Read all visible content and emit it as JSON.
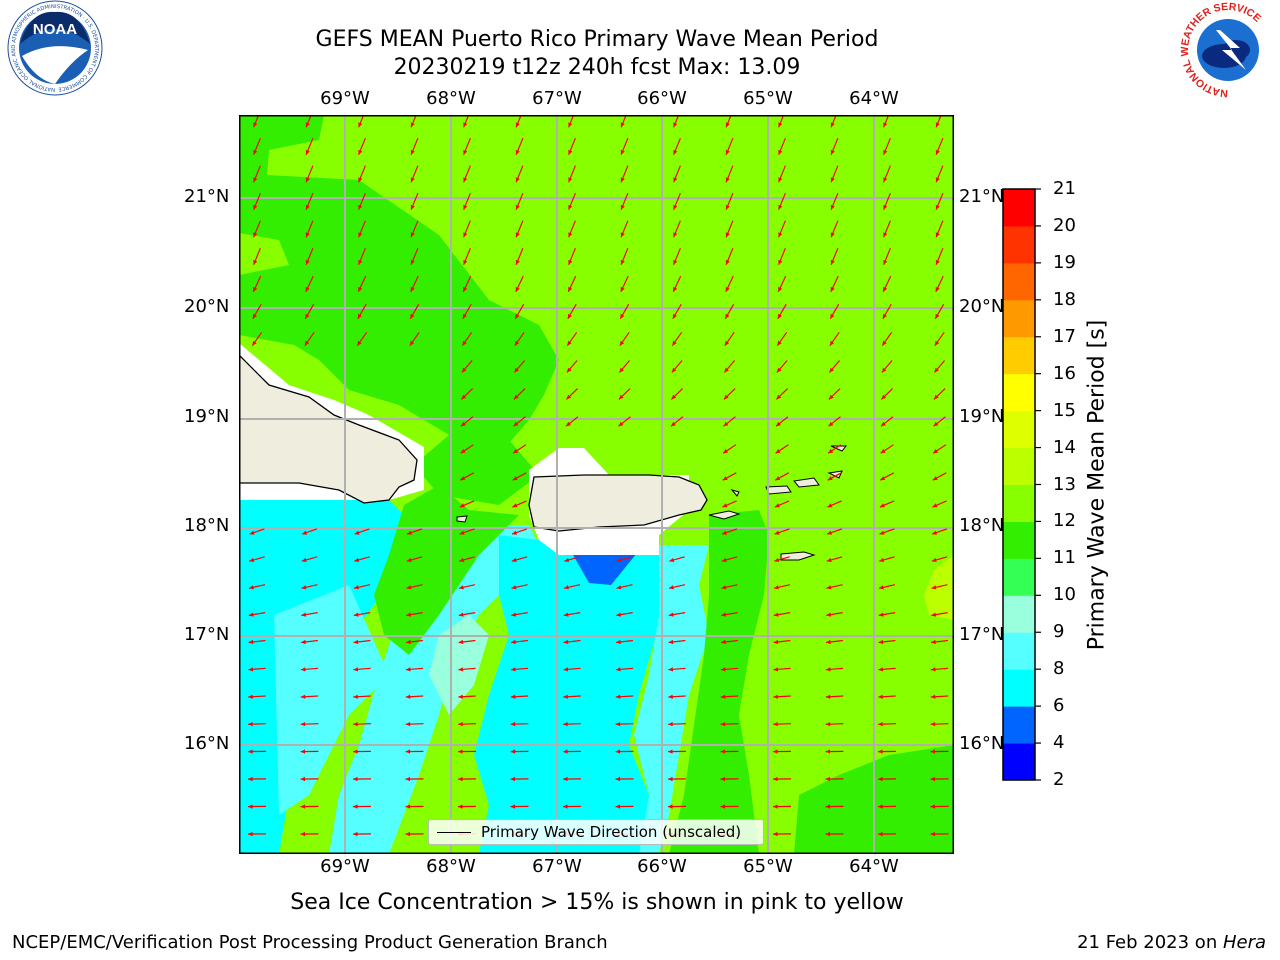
{
  "header": {
    "title_line1": "GEFS MEAN Puerto Rico Primary Wave Mean Period",
    "title_line2": "20230219 t12z 240h fcst   Max: 13.09"
  },
  "logos": {
    "noaa_text": "NOAA",
    "noaa_ring_text": "NATIONAL OCEANIC AND ATMOSPHERIC ADMINISTRATION · U.S. DEPARTMENT OF COMMERCE",
    "nws_ring_text": "NATIONAL WEATHER SERVICE"
  },
  "map": {
    "lon_labels": [
      "69°W",
      "68°W",
      "67°W",
      "66°W",
      "65°W",
      "64°W"
    ],
    "lat_labels": [
      "21°N",
      "20°N",
      "19°N",
      "18°N",
      "17°N",
      "16°N"
    ],
    "legend_label": "Primary Wave Direction (unscaled)",
    "arrow_color": "#ff0000"
  },
  "colorbar": {
    "label": "Primary Wave Mean Period [s]",
    "ticks": [
      "2",
      "4",
      "6",
      "8",
      "9",
      "10",
      "11",
      "12",
      "13",
      "14",
      "15",
      "16",
      "17",
      "18",
      "19",
      "20",
      "21"
    ],
    "colors": [
      "#0000ff",
      "#0064ff",
      "#00ffff",
      "#55ffff",
      "#99ffdd",
      "#33ff55",
      "#33ee00",
      "#88ff00",
      "#bbff00",
      "#ddff00",
      "#ffff00",
      "#ffcc00",
      "#ff9900",
      "#ff6600",
      "#ff3300",
      "#ff0000"
    ]
  },
  "caption": "Sea Ice Concentration > 15% is shown in pink to yellow",
  "footer": {
    "left": "NCEP/EMC/Verification Post Processing Product Generation Branch",
    "right_date": "21 Feb 2023 on ",
    "right_host": "Hera"
  }
}
